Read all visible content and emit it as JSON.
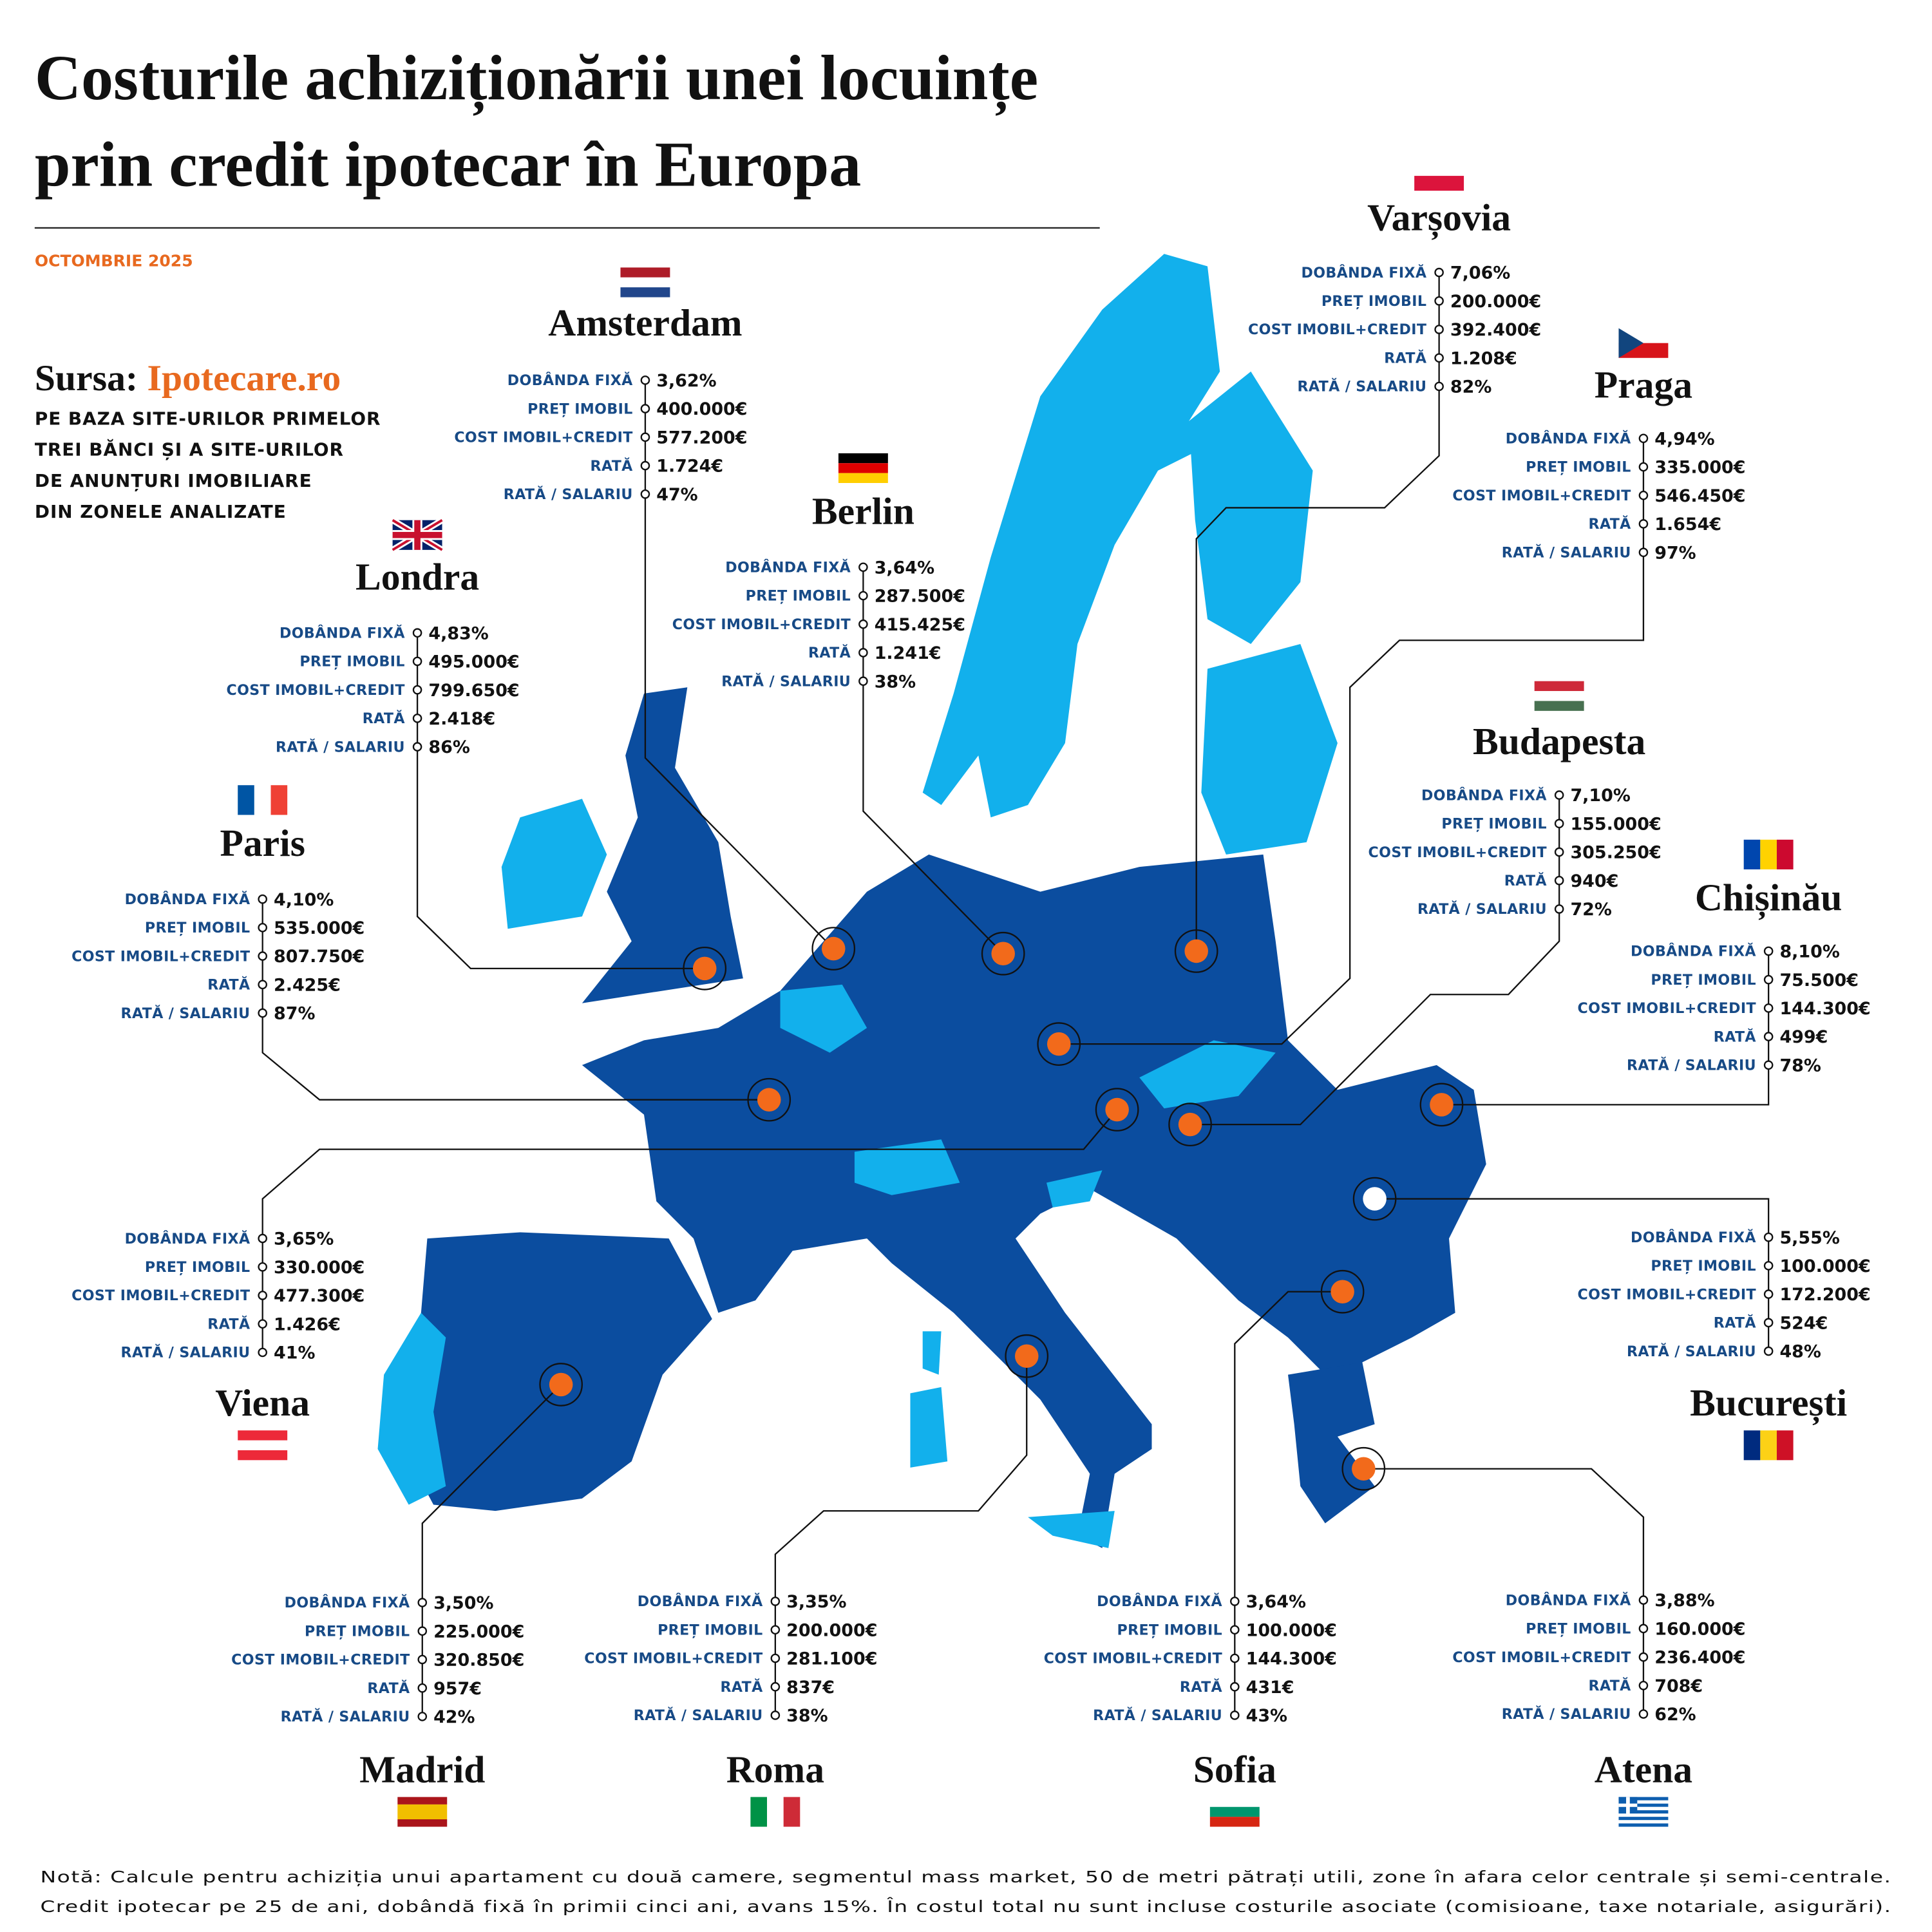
{
  "title_lines": [
    "Costurile achiziționării unei locuințe",
    "prin credit ipotecar în Europa"
  ],
  "date": "OCTOMBRIE 2025",
  "source_label": "Sursa:",
  "source_name": "Ipotecare.ro",
  "source_note_lines": [
    "PE BAZA SITE-URILOR PRIMELOR",
    "TREI BĂNCI ȘI A SITE-URILOR",
    "DE ANUNȚURI IMOBILIARE",
    "DIN ZONELE ANALIZATE"
  ],
  "row_labels": [
    "DOBÂNDA FIXĂ",
    "PREȚ IMOBIL",
    "COST IMOBIL+CREDIT",
    "RATĂ",
    "RATĂ / SALARIU"
  ],
  "cities": [
    {
      "name": "Amsterdam",
      "values": [
        "3,62%",
        "400.000€",
        "577.200€",
        "1.724€",
        "47%"
      ]
    },
    {
      "name": "Varșovia",
      "values": [
        "7,06%",
        "200.000€",
        "392.400€",
        "1.208€",
        "82%"
      ]
    },
    {
      "name": "Praga",
      "values": [
        "4,94%",
        "335.000€",
        "546.450€",
        "1.654€",
        "97%"
      ]
    },
    {
      "name": "Berlin",
      "values": [
        "3,64%",
        "287.500€",
        "415.425€",
        "1.241€",
        "38%"
      ]
    },
    {
      "name": "Londra",
      "values": [
        "4,83%",
        "495.000€",
        "799.650€",
        "2.418€",
        "86%"
      ]
    },
    {
      "name": "Budapesta",
      "values": [
        "7,10%",
        "155.000€",
        "305.250€",
        "940€",
        "72%"
      ]
    },
    {
      "name": "Paris",
      "values": [
        "4,10%",
        "535.000€",
        "807.750€",
        "2.425€",
        "87%"
      ]
    },
    {
      "name": "Chișinău",
      "values": [
        "8,10%",
        "75.500€",
        "144.300€",
        "499€",
        "78%"
      ]
    },
    {
      "name": "Viena",
      "values": [
        "3,65%",
        "330.000€",
        "477.300€",
        "1.426€",
        "41%"
      ]
    },
    {
      "name": "București",
      "values": [
        "5,55%",
        "100.000€",
        "172.200€",
        "524€",
        "48%"
      ]
    },
    {
      "name": "Madrid",
      "values": [
        "3,50%",
        "225.000€",
        "320.850€",
        "957€",
        "42%"
      ]
    },
    {
      "name": "Roma",
      "values": [
        "3,35%",
        "200.000€",
        "281.100€",
        "837€",
        "38%"
      ]
    },
    {
      "name": "Sofia",
      "values": [
        "3,64%",
        "100.000€",
        "144.300€",
        "431€",
        "43%"
      ]
    },
    {
      "name": "Atena",
      "values": [
        "3,88%",
        "160.000€",
        "236.400€",
        "708€",
        "62%"
      ]
    }
  ],
  "notes": [
    "Notă: Calcule pentru achiziția unui apartament cu două camere, segmentul mass market, 50 de metri pătrați utili, zone în afara celor centrale și semi-centrale.",
    "Credit ipotecar pe 25 de ani, dobândă fixă în primii cinci ani, avans 15%. În costul total nu sunt incluse costurile asociate (comisioane, taxe notariale, asigurări)."
  ]
}
